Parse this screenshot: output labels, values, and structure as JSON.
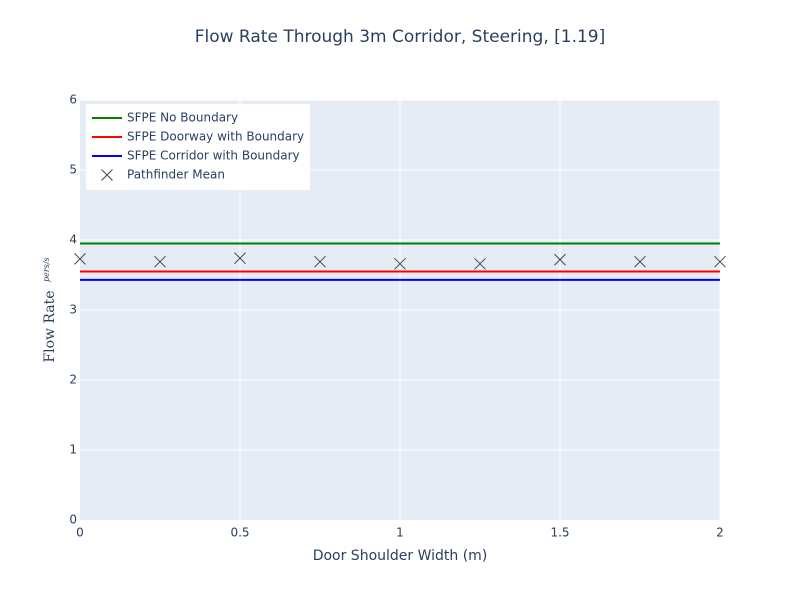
{
  "chart_data": {
    "type": "line",
    "title": "Flow Rate Through 3m Corridor, Steering, [1.19]",
    "xlabel": "Door Shoulder Width (m)",
    "ylabel": "Flow Rate",
    "ylabel_unit": "pers/s",
    "xlim": [
      0,
      2
    ],
    "ylim": [
      0,
      6
    ],
    "x_ticks": [
      0,
      0.5,
      1,
      1.5,
      2
    ],
    "y_ticks": [
      0,
      1,
      2,
      3,
      4,
      5,
      6
    ],
    "x_tick_labels": [
      "0",
      "0.5",
      "1",
      "1.5",
      "2"
    ],
    "y_tick_labels": [
      "0",
      "1",
      "2",
      "3",
      "4",
      "5",
      "6"
    ],
    "grid": true,
    "legend_position": "top-left",
    "series": [
      {
        "name": "SFPE No Boundary",
        "kind": "line",
        "color": "#008000",
        "x": [
          0,
          2
        ],
        "y": [
          3.95,
          3.95
        ]
      },
      {
        "name": "SFPE Doorway with Boundary",
        "kind": "line",
        "color": "#ff0000",
        "x": [
          0,
          2
        ],
        "y": [
          3.55,
          3.55
        ]
      },
      {
        "name": "SFPE Corridor with Boundary",
        "kind": "line",
        "color": "#0000ff",
        "x": [
          0,
          2
        ],
        "y": [
          3.43,
          3.43
        ]
      },
      {
        "name": "Pathfinder Mean",
        "kind": "scatter",
        "color": "#444444",
        "x": [
          0,
          0.25,
          0.5,
          0.75,
          1,
          1.25,
          1.5,
          1.75,
          2
        ],
        "y": [
          3.73,
          3.69,
          3.74,
          3.69,
          3.66,
          3.66,
          3.72,
          3.69,
          3.69
        ]
      }
    ]
  }
}
